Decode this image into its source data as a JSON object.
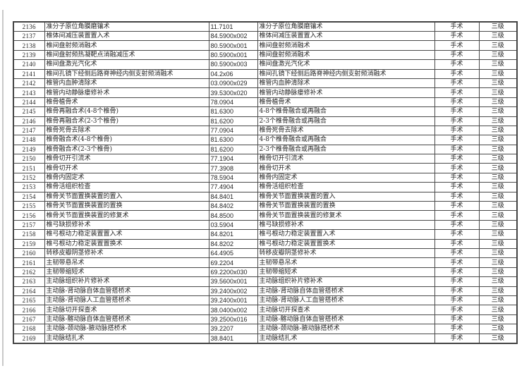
{
  "page": {
    "background": "#ffffff",
    "border_color": "#4a4a4a",
    "text_color": "#262626"
  },
  "table": {
    "fields": [
      "index",
      "name",
      "code",
      "standard_name",
      "category",
      "level"
    ],
    "rows": [
      {
        "index": "2136",
        "name": "准分子原位角膜磨镶术",
        "code": "11.7101",
        "standard_name": "准分子原位角膜磨镶术",
        "category": "手术",
        "level": "三级"
      },
      {
        "index": "2137",
        "name": "椎体间减压装置置入术",
        "code": "84.5900x002",
        "standard_name": "椎体间减压装置置入术",
        "category": "手术",
        "level": "三级"
      },
      {
        "index": "2138",
        "name": "椎间盘射频消融术",
        "code": "80.5900x001",
        "standard_name": "椎间盘射频消融术",
        "category": "手术",
        "level": "三级"
      },
      {
        "index": "2139",
        "name": "椎间盘射频热凝靶点消融减压术",
        "code": "80.5900x001",
        "standard_name": "椎间盘射频消融术",
        "category": "手术",
        "level": "三级"
      },
      {
        "index": "2140",
        "name": "椎间盘激光汽化术",
        "code": "80.5900x003",
        "standard_name": "椎间盘激光汽化术",
        "category": "手术",
        "level": "三级"
      },
      {
        "index": "2141",
        "name": "椎间孔镜下经侧后路脊神经内侧支射频消融术",
        "code": "04.2x06",
        "standard_name": "椎间孔镜下经侧后路脊神经内侧支射频消融术",
        "category": "手术",
        "level": "三级"
      },
      {
        "index": "2142",
        "name": "椎管内血肿清除术",
        "code": "03.0900x029",
        "standard_name": "椎管内血肿清除术",
        "category": "手术",
        "level": "三级"
      },
      {
        "index": "2143",
        "name": "椎管内动静脉瘘修补术",
        "code": "39.5300x020",
        "standard_name": "椎管内动静脉瘘修补术",
        "category": "手术",
        "level": "三级"
      },
      {
        "index": "2144",
        "name": "椎骨植骨术",
        "code": "78.0904",
        "standard_name": "椎骨植骨术",
        "category": "手术",
        "level": "三级"
      },
      {
        "index": "2145",
        "name": "椎骨再融合术(4-8个椎骨)",
        "code": "81.6300",
        "standard_name": "4-8个椎骨融合或再融合",
        "category": "手术",
        "level": "三级"
      },
      {
        "index": "2146",
        "name": "椎骨再融合术(2-3个椎骨)",
        "code": "81.6200",
        "standard_name": "2-3个椎骨融合或再融合",
        "category": "手术",
        "level": "三级"
      },
      {
        "index": "2147",
        "name": "椎骨死骨去除术",
        "code": "77.0904",
        "standard_name": "椎骨死骨去除术",
        "category": "手术",
        "level": "三级"
      },
      {
        "index": "2148",
        "name": "椎骨融合术(4-8个椎骨)",
        "code": "81.6300",
        "standard_name": "4-8个椎骨融合或再融合",
        "category": "手术",
        "level": "三级"
      },
      {
        "index": "2149",
        "name": "椎骨融合术(2-3个椎骨)",
        "code": "81.6200",
        "standard_name": "2-3个椎骨融合或再融合",
        "category": "手术",
        "level": "三级"
      },
      {
        "index": "2150",
        "name": "椎骨切开引流术",
        "code": "77.1904",
        "standard_name": "椎骨切开引流术",
        "category": "手术",
        "level": "三级"
      },
      {
        "index": "2151",
        "name": "椎骨切开术",
        "code": "77.3908",
        "standard_name": "椎骨切开术",
        "category": "手术",
        "level": "三级"
      },
      {
        "index": "2152",
        "name": "椎骨内固定术",
        "code": "78.5904",
        "standard_name": "椎骨内固定术",
        "category": "手术",
        "level": "三级"
      },
      {
        "index": "2153",
        "name": "椎骨活组织检查",
        "code": "77.4904",
        "standard_name": "椎骨活组织检查",
        "category": "手术",
        "level": "三级"
      },
      {
        "index": "2154",
        "name": "椎骨关节面置换装置的置入",
        "code": "84.8401",
        "standard_name": "椎骨关节面置换装置的置入",
        "category": "手术",
        "level": "三级"
      },
      {
        "index": "2155",
        "name": "椎骨关节面置换装置的置换",
        "code": "84.8402",
        "standard_name": "椎骨关节面置换装置的置换",
        "category": "手术",
        "level": "三级"
      },
      {
        "index": "2156",
        "name": "椎骨关节面置换装置的修复术",
        "code": "84.8500",
        "standard_name": "椎骨关节面置换装置的修复术",
        "category": "手术",
        "level": "三级"
      },
      {
        "index": "2157",
        "name": "椎弓缺损修补术",
        "code": "03.5904",
        "standard_name": "椎弓缺损修补术",
        "category": "手术",
        "level": "三级"
      },
      {
        "index": "2158",
        "name": "椎弓根动力稳定装置置入术",
        "code": "84.8201",
        "standard_name": "椎弓根动力稳定装置置入术",
        "category": "手术",
        "level": "三级"
      },
      {
        "index": "2159",
        "name": "椎弓根动力稳定装置置换术",
        "code": "84.8202",
        "standard_name": "椎弓根动力稳定装置置换术",
        "category": "手术",
        "level": "三级"
      },
      {
        "index": "2160",
        "name": "转移皮瓣阴茎修补术",
        "code": "64.4905",
        "standard_name": "转移皮瓣阴茎修补术",
        "category": "手术",
        "level": "三级"
      },
      {
        "index": "2161",
        "name": "主韧带悬吊术",
        "code": "69.2204",
        "standard_name": "主韧带悬吊术",
        "category": "手术",
        "level": "三级"
      },
      {
        "index": "2162",
        "name": "主韧带缩短术",
        "code": "69.2200x030",
        "standard_name": "主韧带缩短术",
        "category": "手术",
        "level": "三级"
      },
      {
        "index": "2163",
        "name": "主动脉组织补片修补术",
        "code": "39.5600x001",
        "standard_name": "主动脉组织补片修补术",
        "category": "手术",
        "level": "三级"
      },
      {
        "index": "2164",
        "name": "主动脉-肾动脉自体血管搭桥术",
        "code": "39.2400x002",
        "standard_name": "主动脉-肾动脉自体血管搭桥术",
        "category": "手术",
        "level": "三级"
      },
      {
        "index": "2165",
        "name": "主动脉-肾动脉人工血管搭桥术",
        "code": "39.2400x001",
        "standard_name": "主动脉-肾动脉人工血管搭桥术",
        "category": "手术",
        "level": "三级"
      },
      {
        "index": "2166",
        "name": "主动脉切开探查术",
        "code": "38.0400x002",
        "standard_name": "主动脉切开探查术",
        "category": "手术",
        "level": "三级"
      },
      {
        "index": "2167",
        "name": "主动脉-髂动脉自体血管搭桥术",
        "code": "39.2500x016",
        "standard_name": "主动脉-髂动脉自体血管搭桥术",
        "category": "手术",
        "level": "三级"
      },
      {
        "index": "2168",
        "name": "主动脉-颈动脉-腋动脉搭桥术",
        "code": "39.2207",
        "standard_name": "主动脉-颈动脉-腋动脉搭桥术",
        "category": "手术",
        "level": "三级"
      },
      {
        "index": "2169",
        "name": "主动脉结扎术",
        "code": "38.8401",
        "standard_name": "主动脉结扎术",
        "category": "手术",
        "level": "三级"
      }
    ]
  }
}
